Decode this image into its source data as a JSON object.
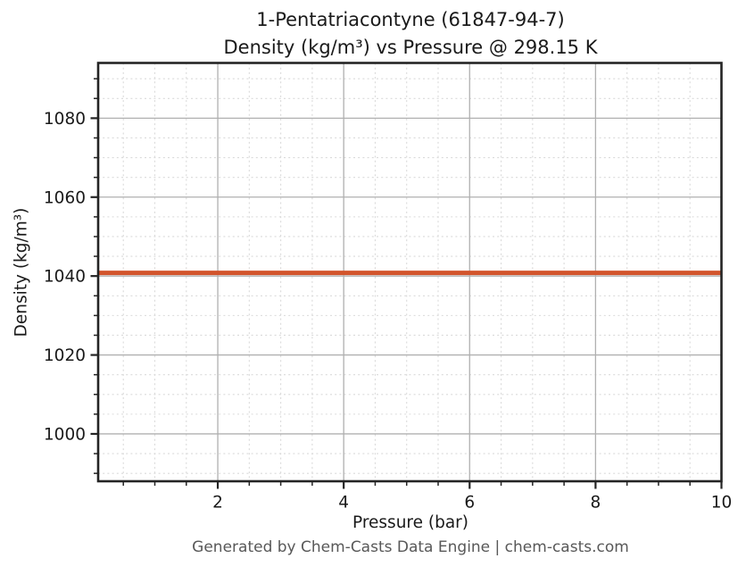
{
  "figure": {
    "title_line1": "1-Pentatriacontyne (61847-94-7)",
    "title_line2": "Density (kg/m³) vs Pressure @ 298.15 K",
    "footer": "Generated by Chem-Casts Data Engine | chem-casts.com"
  },
  "chart_data": {
    "type": "line",
    "title": "1-Pentatriacontyne (61847-94-7)",
    "subtitle": "Density (kg/m³) vs Pressure @ 298.15 K",
    "xlabel": "Pressure (bar)",
    "ylabel": "Density (kg/m³)",
    "xlim": [
      0.1,
      10
    ],
    "ylim": [
      988,
      1094
    ],
    "xticks": [
      2,
      4,
      6,
      8,
      10
    ],
    "yticks": [
      1000,
      1020,
      1040,
      1060,
      1080
    ],
    "xminor_step": 0.5,
    "yminor_step": 5,
    "grid": true,
    "legend_position": "none",
    "series": [
      {
        "name": "Density @ 298.15 K",
        "color": "#d2542c",
        "line_width": 5,
        "x": [
          0.1,
          10
        ],
        "y": [
          1040.8,
          1040.8
        ]
      }
    ],
    "constant_value": 1040.8,
    "colors": {
      "spine": "#242424",
      "tick": "#242424",
      "major_grid": "#b0b0b0",
      "minor_grid": "#dadada",
      "tick_text": "#1a1a1a",
      "footer_text": "#585858",
      "background": "#ffffff"
    }
  }
}
